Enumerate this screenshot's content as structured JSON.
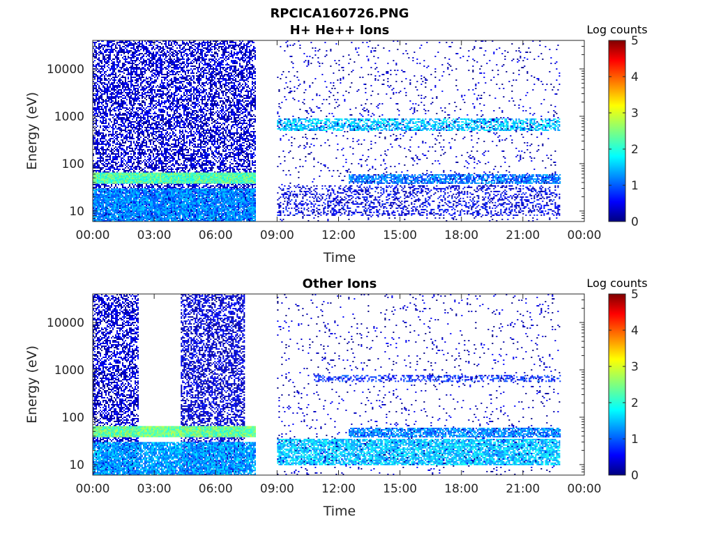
{
  "figure": {
    "title": "RPCICA160726.PNG",
    "background": "#ffffff"
  },
  "chart_data": [
    {
      "type": "heatmap",
      "title": "H+ He++ Ions",
      "xlabel": "Time",
      "ylabel": "Energy (eV)",
      "x_ticks": [
        "00:00",
        "03:00",
        "06:00",
        "09:00",
        "12:00",
        "15:00",
        "18:00",
        "21:00",
        "00:00"
      ],
      "x_range_hours": [
        0,
        24
      ],
      "y_scale": "log",
      "y_ticks": [
        10,
        100,
        1000,
        10000
      ],
      "y_tick_labels": [
        "10",
        "100",
        "1000",
        "10000"
      ],
      "y_range_eV": [
        6,
        40000
      ],
      "colorbar": {
        "label": "Log counts",
        "ticks": [
          "0",
          "1",
          "2",
          "3",
          "4",
          "5"
        ],
        "range": [
          0,
          5
        ],
        "colormap": "jet"
      },
      "features": [
        {
          "t_start_h": 0.0,
          "t_end_h": 7.9,
          "e_min_eV": 6,
          "e_max_eV": 40000,
          "log_counts": 0.4,
          "density": 0.55
        },
        {
          "t_start_h": 0.0,
          "t_end_h": 7.9,
          "e_min_eV": 38,
          "e_max_eV": 65,
          "log_counts": 2.3,
          "density": 1.0
        },
        {
          "t_start_h": 0.0,
          "t_end_h": 7.9,
          "e_min_eV": 6,
          "e_max_eV": 30,
          "log_counts": 1.3,
          "density": 0.85
        },
        {
          "t_start_h": 9.0,
          "t_end_h": 22.8,
          "e_min_eV": 500,
          "e_max_eV": 900,
          "log_counts": 1.6,
          "density": 0.6
        },
        {
          "t_start_h": 12.5,
          "t_end_h": 22.8,
          "e_min_eV": 38,
          "e_max_eV": 60,
          "log_counts": 1.2,
          "density": 0.75
        },
        {
          "t_start_h": 9.0,
          "t_end_h": 22.8,
          "e_min_eV": 8,
          "e_max_eV": 35,
          "log_counts": 0.5,
          "density": 0.3
        },
        {
          "t_start_h": 9.0,
          "t_end_h": 22.8,
          "e_min_eV": 6,
          "e_max_eV": 40000,
          "log_counts": 0.3,
          "density": 0.05
        }
      ]
    },
    {
      "type": "heatmap",
      "title": "Other Ions",
      "xlabel": "Time",
      "ylabel": "Energy (eV)",
      "x_ticks": [
        "00:00",
        "03:00",
        "06:00",
        "09:00",
        "12:00",
        "15:00",
        "18:00",
        "21:00",
        "00:00"
      ],
      "x_range_hours": [
        0,
        24
      ],
      "y_scale": "log",
      "y_ticks": [
        10,
        100,
        1000,
        10000
      ],
      "y_tick_labels": [
        "10",
        "100",
        "1000",
        "10000"
      ],
      "y_range_eV": [
        6,
        40000
      ],
      "colorbar": {
        "label": "Log counts",
        "ticks": [
          "0",
          "1",
          "2",
          "3",
          "4",
          "5"
        ],
        "range": [
          0,
          5
        ],
        "colormap": "jet"
      },
      "features": [
        {
          "t_start_h": 0.0,
          "t_end_h": 2.2,
          "e_min_eV": 6,
          "e_max_eV": 40000,
          "log_counts": 0.4,
          "density": 0.55
        },
        {
          "t_start_h": 4.3,
          "t_end_h": 7.4,
          "e_min_eV": 6,
          "e_max_eV": 40000,
          "log_counts": 0.4,
          "density": 0.55
        },
        {
          "t_start_h": 0.0,
          "t_end_h": 7.9,
          "e_min_eV": 38,
          "e_max_eV": 65,
          "log_counts": 2.4,
          "density": 1.0
        },
        {
          "t_start_h": 0.0,
          "t_end_h": 7.9,
          "e_min_eV": 6,
          "e_max_eV": 30,
          "log_counts": 1.4,
          "density": 0.85
        },
        {
          "t_start_h": 10.8,
          "t_end_h": 22.8,
          "e_min_eV": 580,
          "e_max_eV": 780,
          "log_counts": 0.8,
          "density": 0.45
        },
        {
          "t_start_h": 12.5,
          "t_end_h": 22.8,
          "e_min_eV": 38,
          "e_max_eV": 60,
          "log_counts": 1.3,
          "density": 0.8
        },
        {
          "t_start_h": 9.0,
          "t_end_h": 22.8,
          "e_min_eV": 10,
          "e_max_eV": 35,
          "log_counts": 1.6,
          "density": 0.8
        },
        {
          "t_start_h": 9.0,
          "t_end_h": 22.8,
          "e_min_eV": 6,
          "e_max_eV": 40000,
          "log_counts": 0.3,
          "density": 0.04
        }
      ]
    }
  ]
}
